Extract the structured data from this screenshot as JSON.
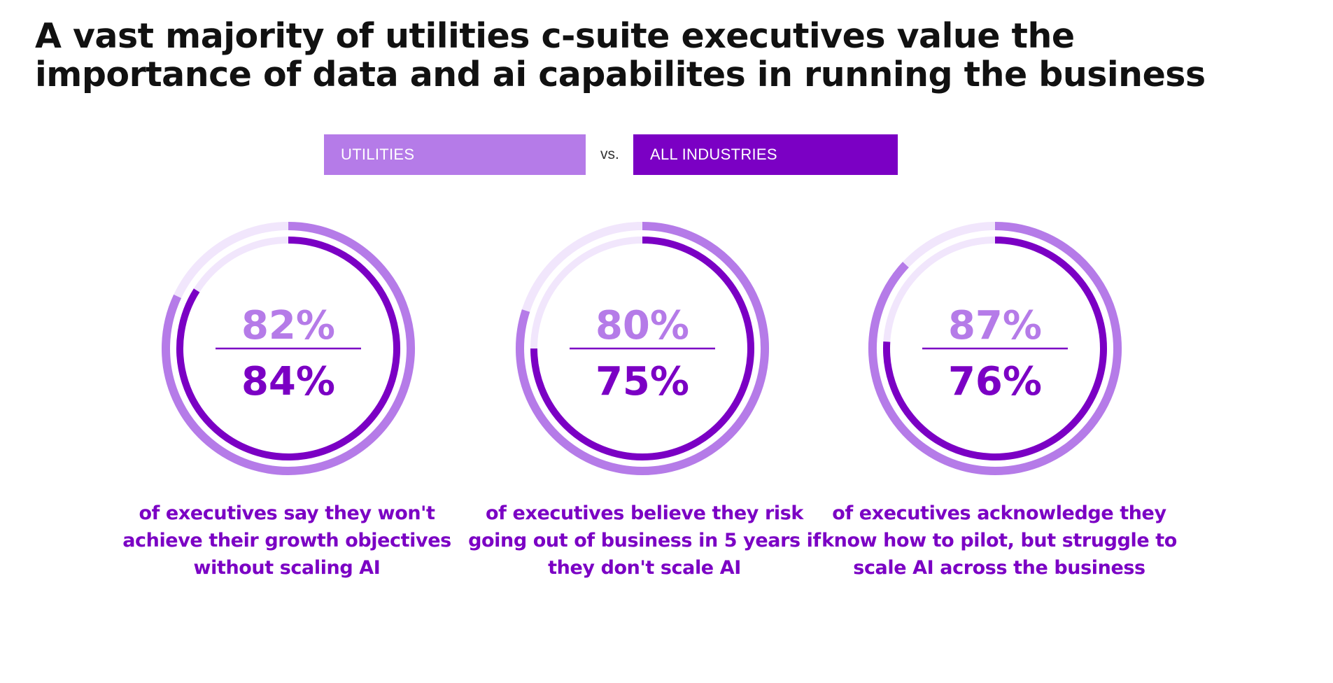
{
  "title": "A vast majority of utilities c-suite executives value the importance of data and ai capabilites in running the business",
  "legend": {
    "utilities_label": "UTILITIES",
    "vs_label": "vs.",
    "all_industries_label": "ALL INDUSTRIES"
  },
  "colors": {
    "utilities": "#b57be8",
    "all_industries": "#7b00c4",
    "track": "#f1e6fc",
    "caption": "#7b00c4"
  },
  "chart_data": {
    "type": "donut-comparison",
    "title": "A vast majority of utilities c-suite executives value the importance of data and ai capabilites in running the business",
    "series": [
      {
        "name": "UTILITIES",
        "values": [
          82,
          80,
          87
        ]
      },
      {
        "name": "ALL INDUSTRIES",
        "values": [
          84,
          75,
          76
        ]
      }
    ],
    "stats": [
      {
        "utilities": 82,
        "all_industries": 84,
        "utilities_label": "82%",
        "all_industries_label": "84%",
        "caption": "of executives say they won't achieve their growth objectives without scaling AI"
      },
      {
        "utilities": 80,
        "all_industries": 75,
        "utilities_label": "80%",
        "all_industries_label": "75%",
        "caption": "of executives believe they risk going out of business in 5 years if they don't scale AI"
      },
      {
        "utilities": 87,
        "all_industries": 76,
        "utilities_label": "87%",
        "all_industries_label": "76%",
        "caption": "of executives acknowledge they know how to pilot, but struggle to scale AI across the business"
      }
    ]
  }
}
